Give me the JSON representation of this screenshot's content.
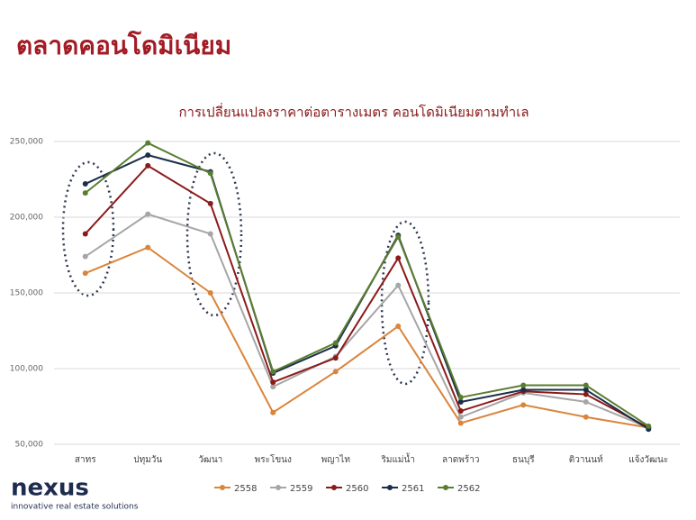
{
  "page_title": "ตลาดคอนโดมิเนียม",
  "brand": {
    "name": "nexus",
    "tagline": "innovative real estate solutions"
  },
  "chart_data": {
    "type": "line",
    "title": "การเปลี่ยนแปลงราคาต่อตารางเมตร คอนโดมิเนียมตามทำเล",
    "categories": [
      "สาทร",
      "ปทุมวัน",
      "วัฒนา",
      "พระโขนง",
      "พญาไท",
      "ริมแม่น้ำ",
      "ลาดพร้าว",
      "ธนบุรี",
      "ติวานนท์",
      "แจ้งวัฒนะ"
    ],
    "series": [
      {
        "name": "2558",
        "color": "#d9853b",
        "values": [
          163000,
          180000,
          150000,
          71000,
          98000,
          128000,
          64000,
          76000,
          68000,
          61000
        ]
      },
      {
        "name": "2559",
        "color": "#a6a6a6",
        "values": [
          174000,
          202000,
          189000,
          88000,
          108000,
          155000,
          68000,
          84000,
          78000,
          61000
        ]
      },
      {
        "name": "2560",
        "color": "#8b1a1a",
        "values": [
          189000,
          234000,
          209000,
          91000,
          107000,
          173000,
          72000,
          85000,
          83000,
          61000
        ]
      },
      {
        "name": "2561",
        "color": "#1c2f4a",
        "values": [
          222000,
          241000,
          230000,
          97000,
          115000,
          188000,
          78000,
          86000,
          86000,
          60000
        ]
      },
      {
        "name": "2562",
        "color": "#5a7d32",
        "values": [
          216000,
          249000,
          229000,
          98000,
          117000,
          187000,
          81000,
          89000,
          89000,
          62000
        ]
      }
    ],
    "ylim": [
      50000,
      250000
    ],
    "yticks": [
      {
        "value": 50000,
        "label": "50,000"
      },
      {
        "value": 100000,
        "label": "100,000"
      },
      {
        "value": 150000,
        "label": "150,000"
      },
      {
        "value": 200000,
        "label": "200,000"
      },
      {
        "value": 250000,
        "label": "250,000"
      }
    ],
    "grid": true,
    "legend": "bottom"
  }
}
